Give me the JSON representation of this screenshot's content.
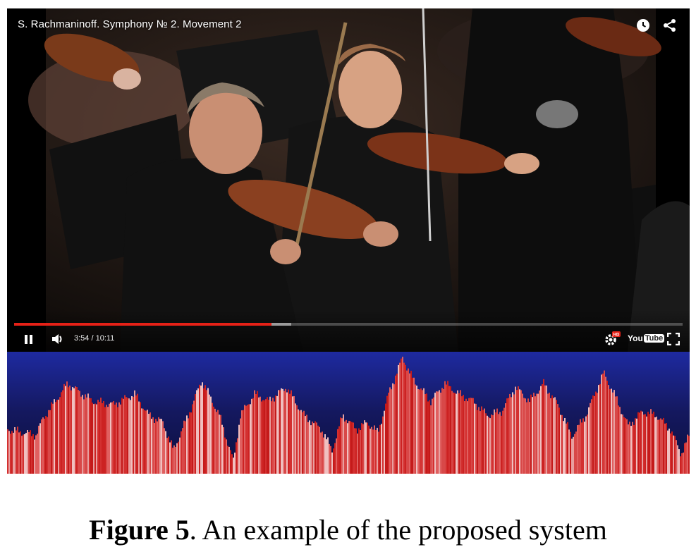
{
  "player": {
    "title": "S. Rachmaninoff. Symphony № 2. Movement 2",
    "current_time": "3:54 / 10:11",
    "progress_played": 0.385,
    "progress_loaded": 0.415,
    "logo_you": "You",
    "logo_tube": "Tube",
    "hd_badge": "HD",
    "icons": {
      "watch_later": "clock-icon",
      "share": "share-icon",
      "pause": "pause-icon",
      "volume": "volume-icon",
      "settings": "gear-icon",
      "fullscreen": "fullscreen-icon"
    },
    "accent_color": "#e62117"
  },
  "waveform": {
    "peak_color": "#d62020",
    "background_color": "#1a1f6e"
  },
  "caption": {
    "label": "Figure 5",
    "text": ". An example of the proposed system"
  }
}
